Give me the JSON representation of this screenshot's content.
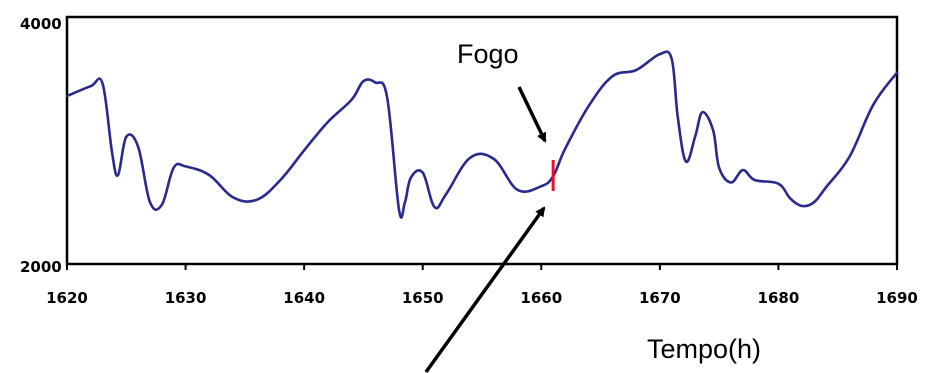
{
  "chart_data": {
    "type": "line",
    "title": "",
    "xlabel": "Tempo(h)",
    "ylabel": "",
    "xlim": [
      1620,
      1690
    ],
    "ylim": [
      2000,
      4000
    ],
    "x_ticks": [
      "1620",
      "1630",
      "1640",
      "1650",
      "1660",
      "1670",
      "1680",
      "1690"
    ],
    "y_ticks": [
      "2000",
      "4000"
    ],
    "grid": false,
    "legend": "none",
    "line_color": "#2a2a8c",
    "marker_color": "#e8102a",
    "annotation": {
      "text": "Fogo",
      "x": 1661
    },
    "series": [
      {
        "x": [
          1620,
          1622,
          1623,
          1623.8,
          1624.3,
          1625,
          1626,
          1627,
          1628,
          1629,
          1630,
          1632,
          1634,
          1636,
          1638,
          1640,
          1642,
          1644,
          1645,
          1646,
          1647,
          1648,
          1648.5,
          1649,
          1650,
          1651,
          1652,
          1654,
          1656,
          1658,
          1660,
          1661,
          1662,
          1664,
          1666,
          1668,
          1670,
          1671,
          1671.5,
          1672.2,
          1673,
          1673.6,
          1674.5,
          1675,
          1676,
          1677,
          1678,
          1680,
          1681,
          1682,
          1683,
          1684,
          1686,
          1688,
          1690
        ],
        "y": [
          3360,
          3440,
          3460,
          2900,
          2720,
          3030,
          2950,
          2500,
          2480,
          2780,
          2790,
          2720,
          2540,
          2520,
          2680,
          2920,
          3150,
          3330,
          3480,
          3470,
          3350,
          2440,
          2500,
          2700,
          2740,
          2460,
          2570,
          2860,
          2850,
          2600,
          2630,
          2710,
          2930,
          3280,
          3520,
          3570,
          3700,
          3660,
          3200,
          2830,
          3040,
          3230,
          3080,
          2780,
          2660,
          2760,
          2680,
          2650,
          2530,
          2470,
          2500,
          2620,
          2870,
          3290,
          3550
        ]
      }
    ]
  }
}
